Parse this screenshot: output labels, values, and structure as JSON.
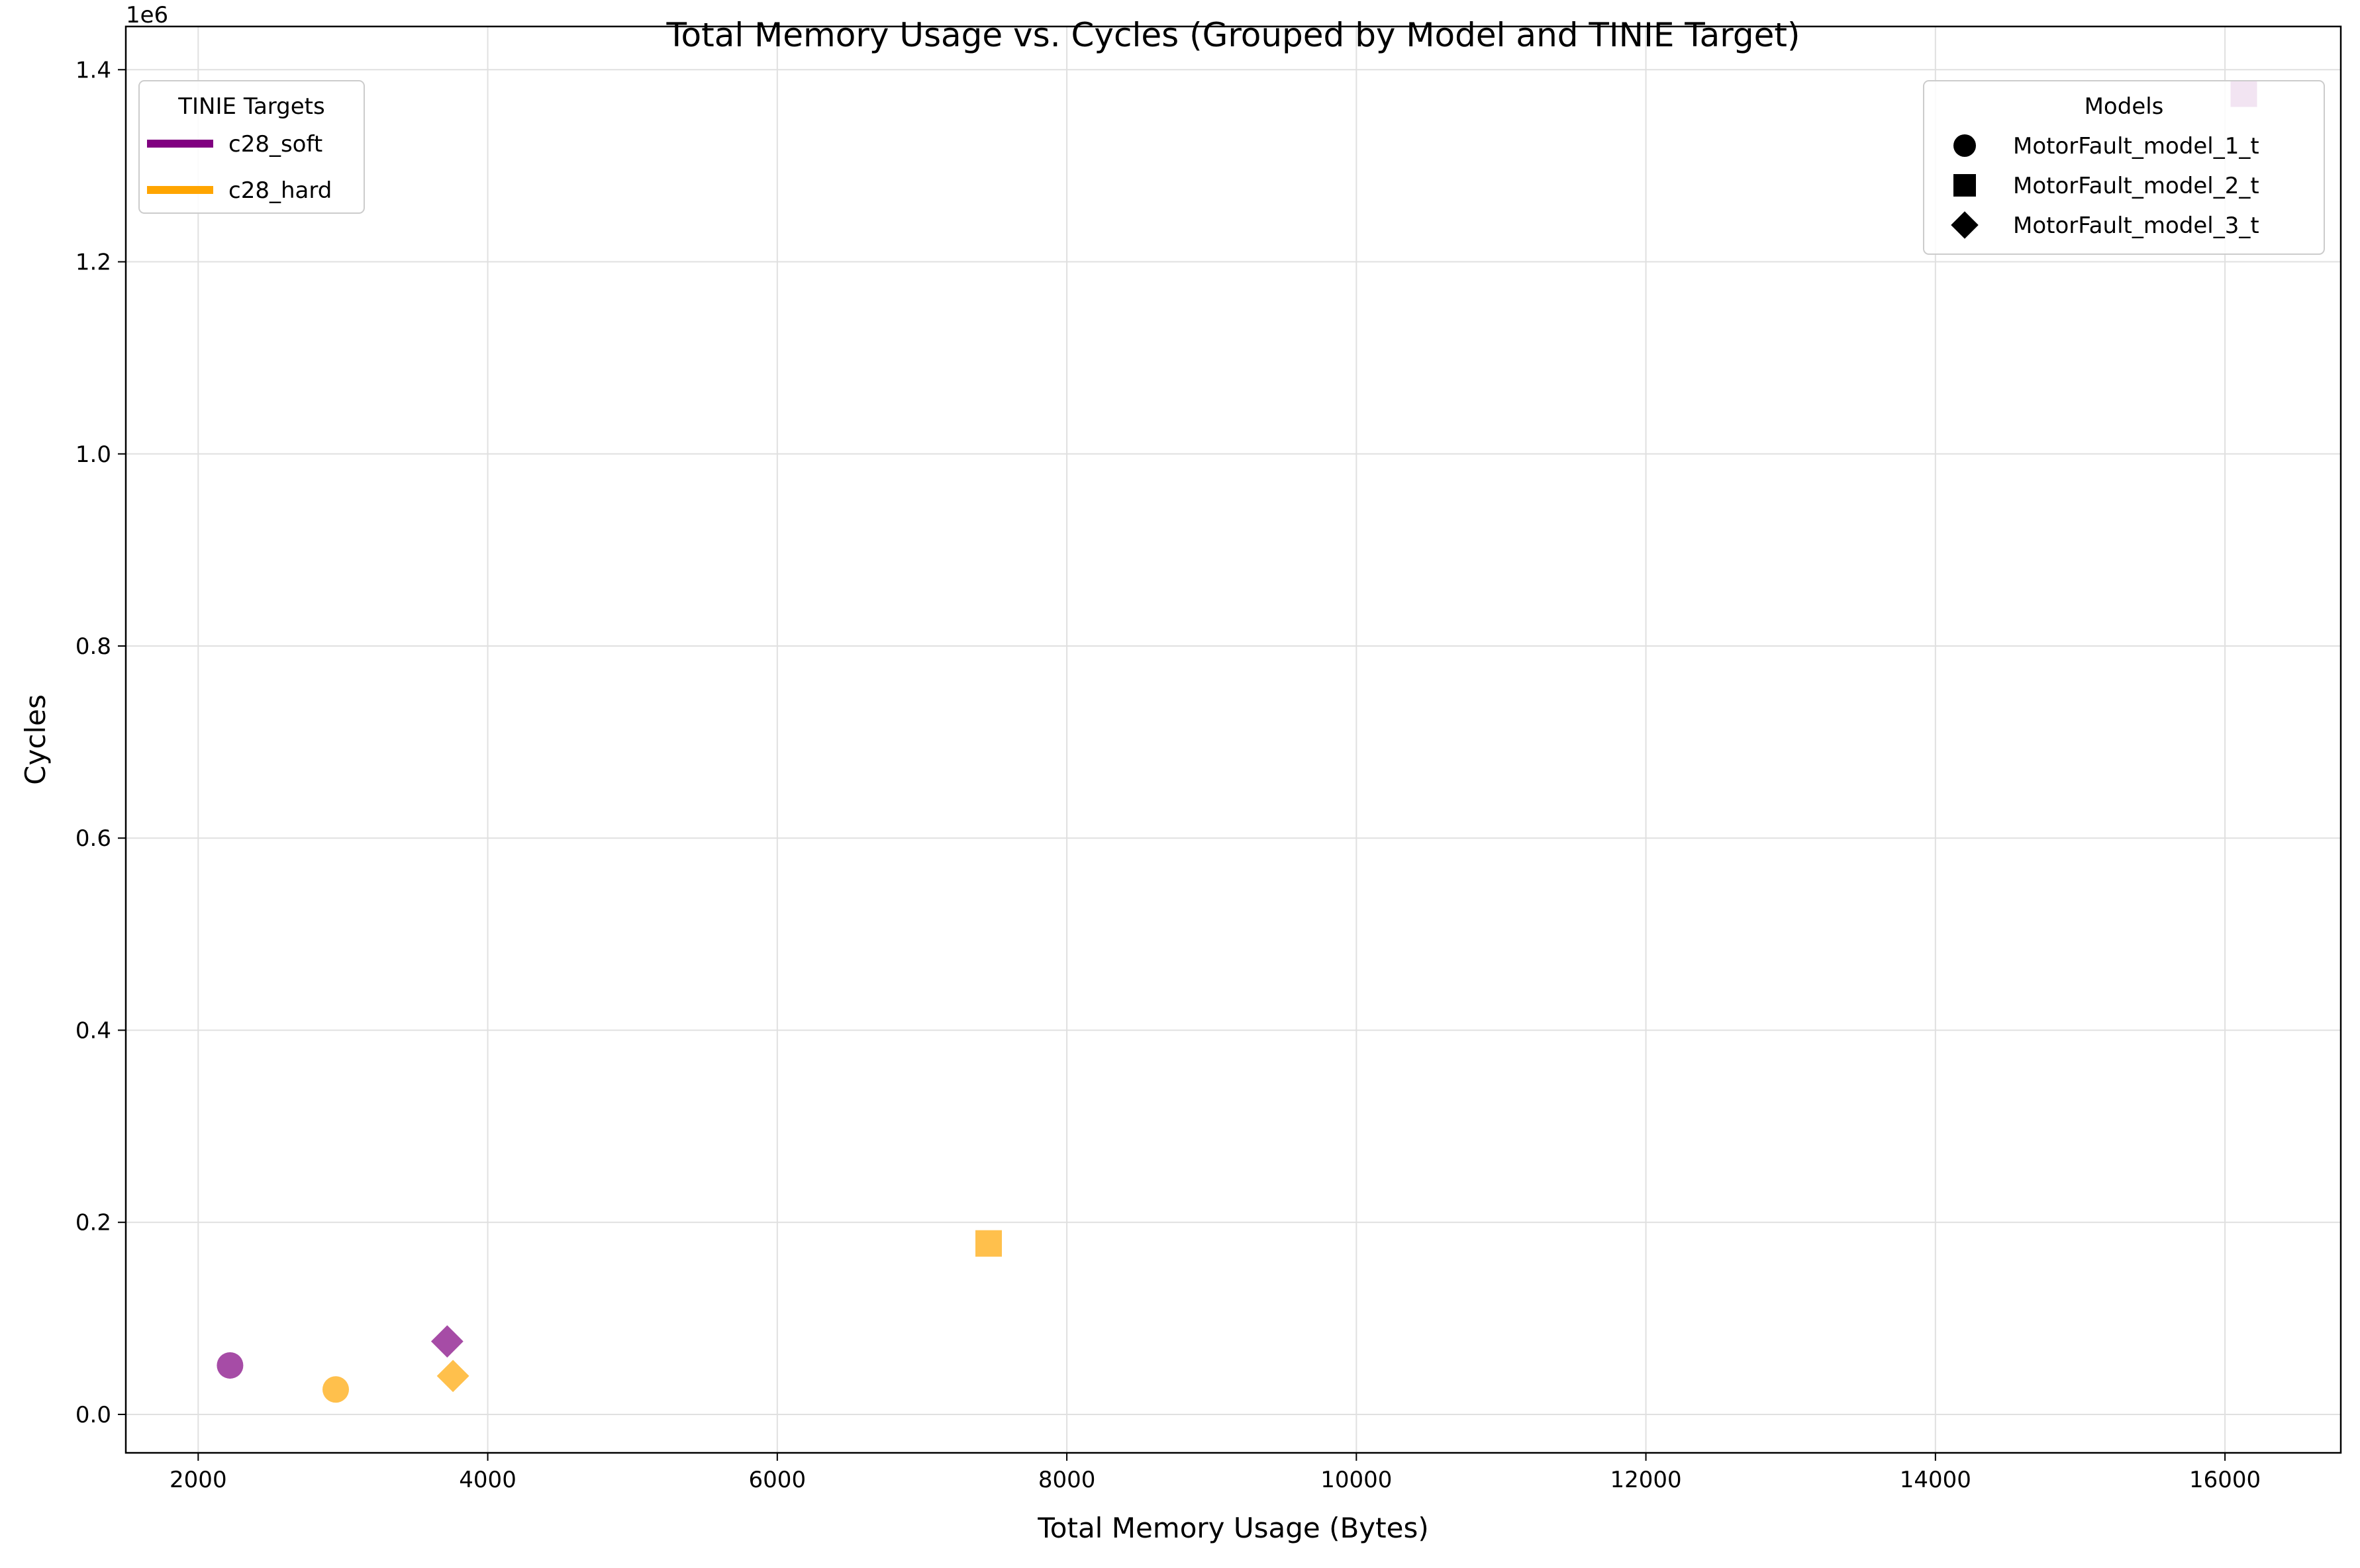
{
  "chart_data": {
    "type": "scatter",
    "title": "Total Memory Usage vs. Cycles (Grouped by Model and TINIE Target)",
    "xlabel": "Total Memory Usage (Bytes)",
    "ylabel": "Cycles",
    "y_offset_label": "1e6",
    "xlim": [
      1500,
      16800
    ],
    "ylim": [
      -40000,
      1445000
    ],
    "x_ticks": [
      2000,
      4000,
      6000,
      8000,
      10000,
      12000,
      14000,
      16000
    ],
    "x_tick_labels": [
      "2000",
      "4000",
      "6000",
      "8000",
      "10000",
      "12000",
      "14000",
      "16000"
    ],
    "y_ticks": [
      0,
      200000,
      400000,
      600000,
      800000,
      1000000,
      1200000,
      1400000
    ],
    "y_tick_labels": [
      "0.0",
      "0.2",
      "0.4",
      "0.6",
      "0.8",
      "1.0",
      "1.2",
      "1.4"
    ],
    "grid": true,
    "legends": [
      {
        "title": "TINIE Targets",
        "placement": "top-left",
        "entries": [
          {
            "label": "c28_soft",
            "color": "#800080"
          },
          {
            "label": "c28_hard",
            "color": "#FFA500"
          }
        ]
      },
      {
        "title": "Models",
        "placement": "top-right",
        "entries": [
          {
            "label": "MotorFault_model_1_t",
            "marker": "circle"
          },
          {
            "label": "MotorFault_model_2_t",
            "marker": "square"
          },
          {
            "label": "MotorFault_model_3_t",
            "marker": "diamond"
          }
        ]
      }
    ],
    "series": [
      {
        "target": "c28_soft",
        "model": "MotorFault_model_1_t",
        "marker": "circle",
        "color": "#800080",
        "x": 2220,
        "y": 51000
      },
      {
        "target": "c28_soft",
        "model": "MotorFault_model_2_t",
        "marker": "square",
        "color": "#800080",
        "x": 16130,
        "y": 1375000
      },
      {
        "target": "c28_soft",
        "model": "MotorFault_model_3_t",
        "marker": "diamond",
        "color": "#800080",
        "x": 3720,
        "y": 76000
      },
      {
        "target": "c28_hard",
        "model": "MotorFault_model_1_t",
        "marker": "circle",
        "color": "#FFA500",
        "x": 2950,
        "y": 26000
      },
      {
        "target": "c28_hard",
        "model": "MotorFault_model_2_t",
        "marker": "square",
        "color": "#FFA500",
        "x": 7460,
        "y": 178000
      },
      {
        "target": "c28_hard",
        "model": "MotorFault_model_3_t",
        "marker": "diamond",
        "color": "#FFA500",
        "x": 3760,
        "y": 40000
      }
    ]
  }
}
